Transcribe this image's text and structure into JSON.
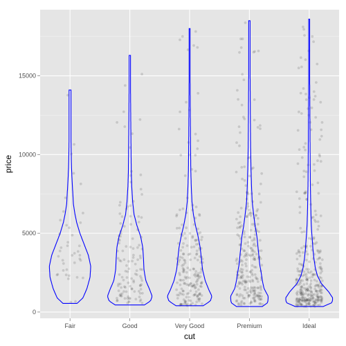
{
  "chart_data": {
    "type": "violin",
    "xlabel": "cut",
    "ylabel": "price",
    "categories": [
      "Fair",
      "Good",
      "Very Good",
      "Premium",
      "Ideal"
    ],
    "ylim": [
      -400,
      19200
    ],
    "yticks": [
      0,
      5000,
      10000,
      15000
    ],
    "grid": true,
    "legend": "none",
    "colors": {
      "panel": "#e5e5e5",
      "grid_major": "#ffffff",
      "grid_minor": "#f2f2f2",
      "violin": "#0000ff",
      "points": "#000000"
    },
    "violins": [
      {
        "name": "Fair",
        "min": 550,
        "max": 14100,
        "profile": [
          [
            550,
            0.3
          ],
          [
            900,
            0.55
          ],
          [
            1500,
            0.72
          ],
          [
            2200,
            0.85
          ],
          [
            2900,
            0.88
          ],
          [
            3600,
            0.78
          ],
          [
            4300,
            0.6
          ],
          [
            5000,
            0.42
          ],
          [
            5700,
            0.28
          ],
          [
            6300,
            0.2
          ],
          [
            6900,
            0.14
          ],
          [
            7500,
            0.12
          ],
          [
            8000,
            0.1
          ],
          [
            8600,
            0.08
          ],
          [
            9300,
            0.06
          ],
          [
            10000,
            0.05
          ],
          [
            11000,
            0.04
          ],
          [
            12000,
            0.04
          ],
          [
            13000,
            0.04
          ],
          [
            14100,
            0.04
          ]
        ]
      },
      {
        "name": "Good",
        "min": 450,
        "max": 16300,
        "profile": [
          [
            450,
            0.62
          ],
          [
            700,
            0.88
          ],
          [
            1000,
            0.95
          ],
          [
            1400,
            0.85
          ],
          [
            2000,
            0.68
          ],
          [
            2700,
            0.6
          ],
          [
            3400,
            0.58
          ],
          [
            4100,
            0.55
          ],
          [
            4800,
            0.46
          ],
          [
            5500,
            0.3
          ],
          [
            6200,
            0.18
          ],
          [
            7000,
            0.12
          ],
          [
            8000,
            0.08
          ],
          [
            9000,
            0.06
          ],
          [
            10500,
            0.05
          ],
          [
            12000,
            0.04
          ],
          [
            14000,
            0.03
          ],
          [
            16300,
            0.03
          ]
        ]
      },
      {
        "name": "Very Good",
        "min": 400,
        "max": 18000,
        "profile": [
          [
            400,
            0.58
          ],
          [
            700,
            0.88
          ],
          [
            1000,
            0.95
          ],
          [
            1400,
            0.82
          ],
          [
            2000,
            0.66
          ],
          [
            2700,
            0.55
          ],
          [
            3400,
            0.5
          ],
          [
            4100,
            0.45
          ],
          [
            4800,
            0.36
          ],
          [
            5500,
            0.25
          ],
          [
            6200,
            0.16
          ],
          [
            7000,
            0.1
          ],
          [
            8000,
            0.07
          ],
          [
            9000,
            0.05
          ],
          [
            10500,
            0.04
          ],
          [
            12500,
            0.03
          ],
          [
            15000,
            0.02
          ],
          [
            18000,
            0.02
          ]
        ]
      },
      {
        "name": "Premium",
        "min": 350,
        "max": 18500,
        "profile": [
          [
            350,
            0.55
          ],
          [
            600,
            0.78
          ],
          [
            1000,
            0.8
          ],
          [
            1500,
            0.62
          ],
          [
            2000,
            0.55
          ],
          [
            2500,
            0.5
          ],
          [
            3000,
            0.44
          ],
          [
            3600,
            0.4
          ],
          [
            4200,
            0.36
          ],
          [
            4800,
            0.32
          ],
          [
            5500,
            0.24
          ],
          [
            6200,
            0.18
          ],
          [
            7000,
            0.12
          ],
          [
            8000,
            0.09
          ],
          [
            9000,
            0.07
          ],
          [
            10500,
            0.05
          ],
          [
            12500,
            0.04
          ],
          [
            15000,
            0.03
          ],
          [
            18500,
            0.03
          ]
        ]
      },
      {
        "name": "Ideal",
        "min": 350,
        "max": 18600,
        "profile": [
          [
            350,
            0.6
          ],
          [
            600,
            0.98
          ],
          [
            900,
            1.0
          ],
          [
            1300,
            0.82
          ],
          [
            1800,
            0.52
          ],
          [
            2300,
            0.35
          ],
          [
            2800,
            0.26
          ],
          [
            3400,
            0.2
          ],
          [
            4000,
            0.16
          ],
          [
            4800,
            0.12
          ],
          [
            5500,
            0.09
          ],
          [
            6500,
            0.07
          ],
          [
            8000,
            0.05
          ],
          [
            10000,
            0.04
          ],
          [
            12500,
            0.03
          ],
          [
            15000,
            0.02
          ],
          [
            18600,
            0.02
          ]
        ]
      }
    ]
  }
}
